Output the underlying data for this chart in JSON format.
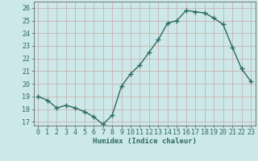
{
  "x": [
    0,
    1,
    2,
    3,
    4,
    5,
    6,
    7,
    8,
    9,
    10,
    11,
    12,
    13,
    14,
    15,
    16,
    17,
    18,
    19,
    20,
    21,
    22,
    23
  ],
  "y": [
    19.0,
    18.7,
    18.1,
    18.3,
    18.1,
    17.8,
    17.4,
    16.8,
    17.5,
    19.8,
    20.8,
    21.5,
    22.5,
    23.5,
    24.8,
    25.0,
    25.8,
    25.7,
    25.6,
    25.2,
    24.7,
    22.9,
    21.2,
    20.2
  ],
  "line_color": "#2e6b5e",
  "marker": "+",
  "markersize": 4,
  "linewidth": 1.0,
  "bg_color": "#cce8e8",
  "grid_color": "#c8a8a8",
  "xlabel": "Humidex (Indice chaleur)",
  "xlim": [
    -0.5,
    23.5
  ],
  "ylim": [
    16.7,
    26.5
  ],
  "yticks": [
    17,
    18,
    19,
    20,
    21,
    22,
    23,
    24,
    25,
    26
  ],
  "xticks": [
    0,
    1,
    2,
    3,
    4,
    5,
    6,
    7,
    8,
    9,
    10,
    11,
    12,
    13,
    14,
    15,
    16,
    17,
    18,
    19,
    20,
    21,
    22,
    23
  ],
  "xlabel_fontsize": 6.5,
  "tick_fontsize": 6.0,
  "tick_color": "#2e6b5e"
}
